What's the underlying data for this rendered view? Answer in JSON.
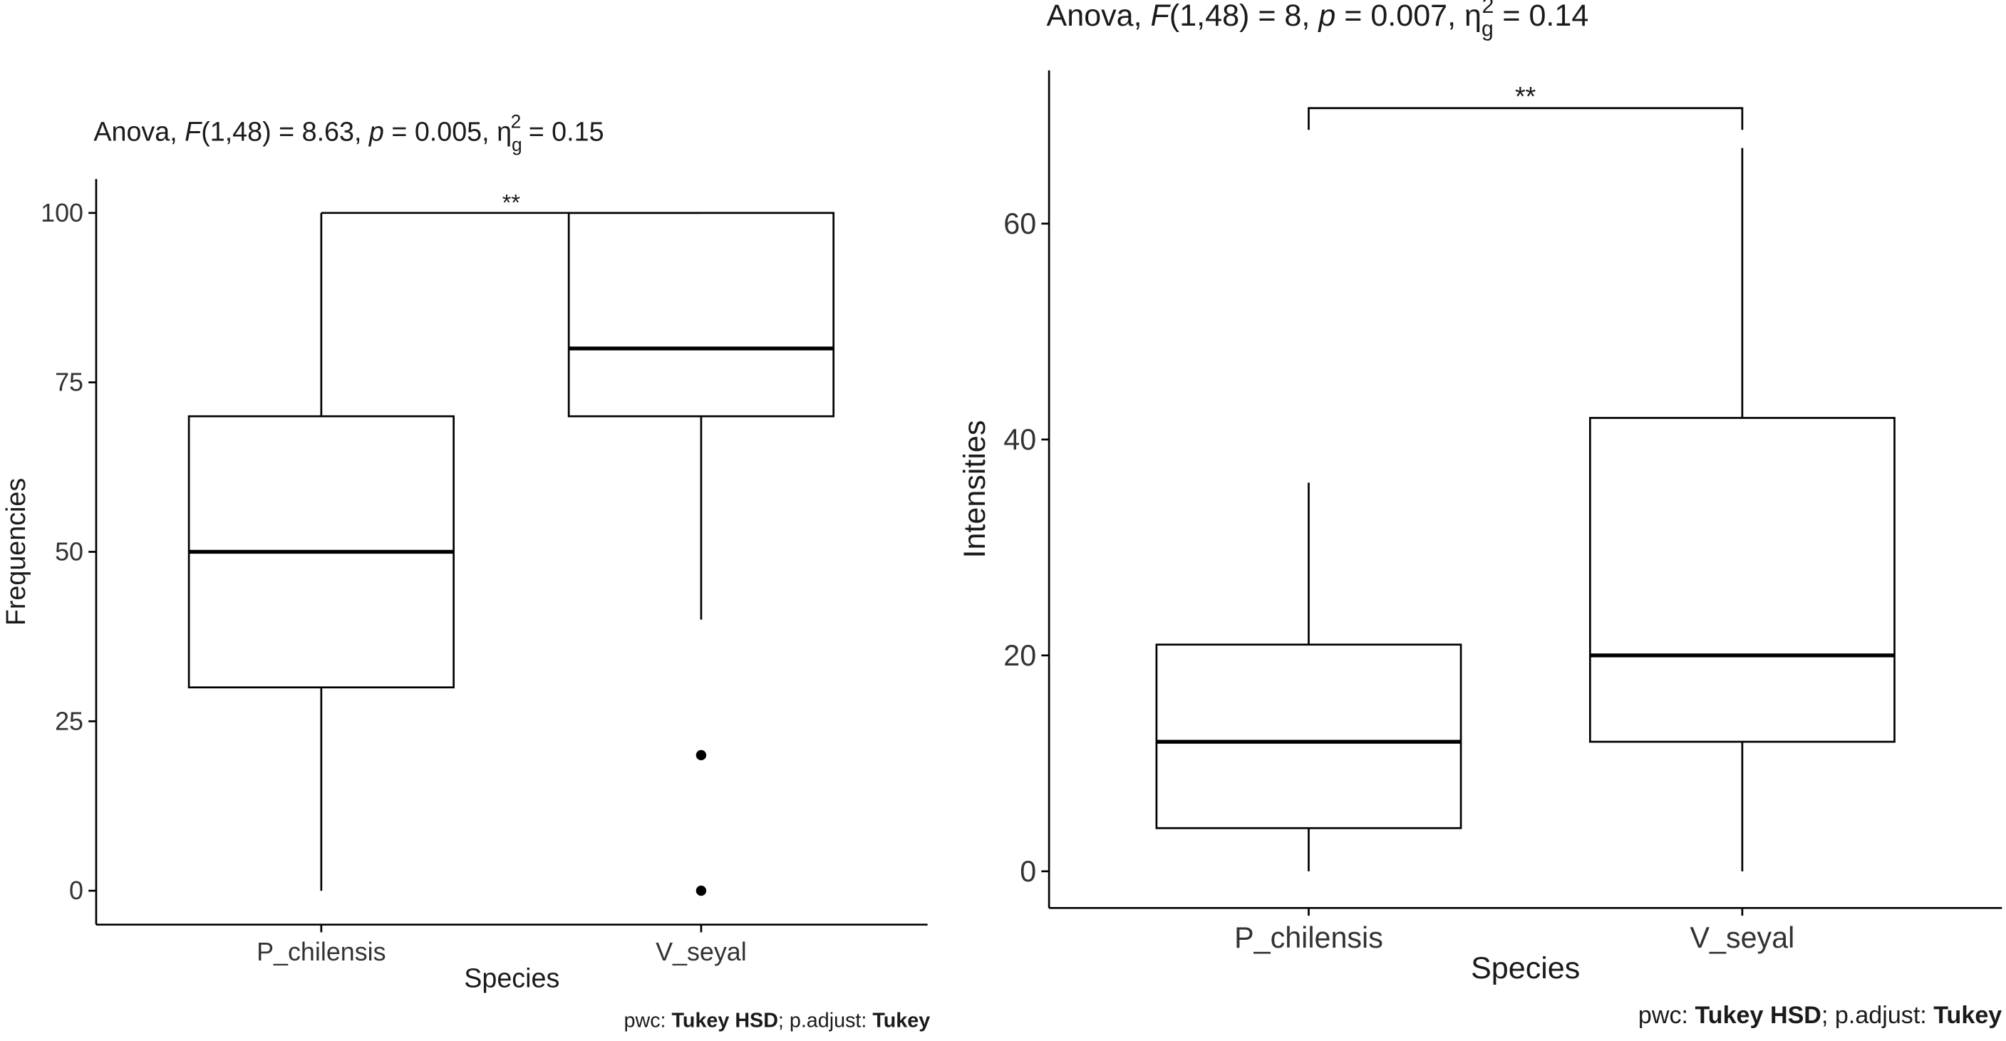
{
  "chart_data": [
    {
      "type": "box",
      "title": [
        {
          "text": "Anova, ",
          "style": "normal"
        },
        {
          "text": "F",
          "style": "italic"
        },
        {
          "text": "(1,48) = 8.63, ",
          "style": "normal"
        },
        {
          "text": "p",
          "style": "italic"
        },
        {
          "text": " = 0.005, ",
          "style": "normal"
        },
        {
          "text": "η",
          "style": "normal"
        },
        {
          "text": "g",
          "style": "sub"
        },
        {
          "text": "2",
          "style": "sup"
        },
        {
          "text": " = 0.15",
          "style": "normal"
        }
      ],
      "x_label": "Species",
      "y_label": "Frequencies",
      "categories": [
        "P_chilensis",
        "V_seyal"
      ],
      "boxes": [
        {
          "whisker_low": 0,
          "q1": 30,
          "median": 50,
          "q3": 70,
          "whisker_high": 100,
          "outliers": []
        },
        {
          "whisker_low": 40,
          "q1": 70,
          "median": 80,
          "q3": 100,
          "whisker_high": 100,
          "outliers": [
            20,
            0
          ]
        }
      ],
      "bracket": {
        "label": "**",
        "y": 100
      },
      "ylim": [
        -5,
        105
      ],
      "yticks": [
        0,
        25,
        50,
        75,
        100
      ],
      "caption": [
        {
          "text": "pwc: ",
          "style": "normal"
        },
        {
          "text": "Tukey HSD",
          "style": "bold"
        },
        {
          "text": "; p.adjust: ",
          "style": "normal"
        },
        {
          "text": "Tukey",
          "style": "bold"
        }
      ]
    },
    {
      "type": "box",
      "title": [
        {
          "text": "Anova, ",
          "style": "normal"
        },
        {
          "text": "F",
          "style": "italic"
        },
        {
          "text": "(1,48) = 8, ",
          "style": "normal"
        },
        {
          "text": "p",
          "style": "italic"
        },
        {
          "text": " = 0.007, ",
          "style": "normal"
        },
        {
          "text": "η",
          "style": "normal"
        },
        {
          "text": "g",
          "style": "sub"
        },
        {
          "text": "2",
          "style": "sup"
        },
        {
          "text": " = 0.14",
          "style": "normal"
        }
      ],
      "x_label": "Species",
      "y_label": "Intensities",
      "categories": [
        "P_chilensis",
        "V_seyal"
      ],
      "boxes": [
        {
          "whisker_low": 0,
          "q1": 4,
          "median": 12,
          "q3": 21,
          "whisker_high": 36,
          "outliers": []
        },
        {
          "whisker_low": 0,
          "q1": 12,
          "median": 20,
          "q3": 42,
          "whisker_high": 67,
          "outliers": []
        }
      ],
      "bracket": {
        "label": "**",
        "y": 70.7
      },
      "ylim": [
        -3.4,
        74.2
      ],
      "yticks": [
        0,
        20,
        40,
        60
      ],
      "caption": [
        {
          "text": "pwc: ",
          "style": "normal"
        },
        {
          "text": "Tukey HSD",
          "style": "bold"
        },
        {
          "text": "; p.adjust: ",
          "style": "normal"
        },
        {
          "text": "Tukey",
          "style": "bold"
        }
      ]
    }
  ]
}
